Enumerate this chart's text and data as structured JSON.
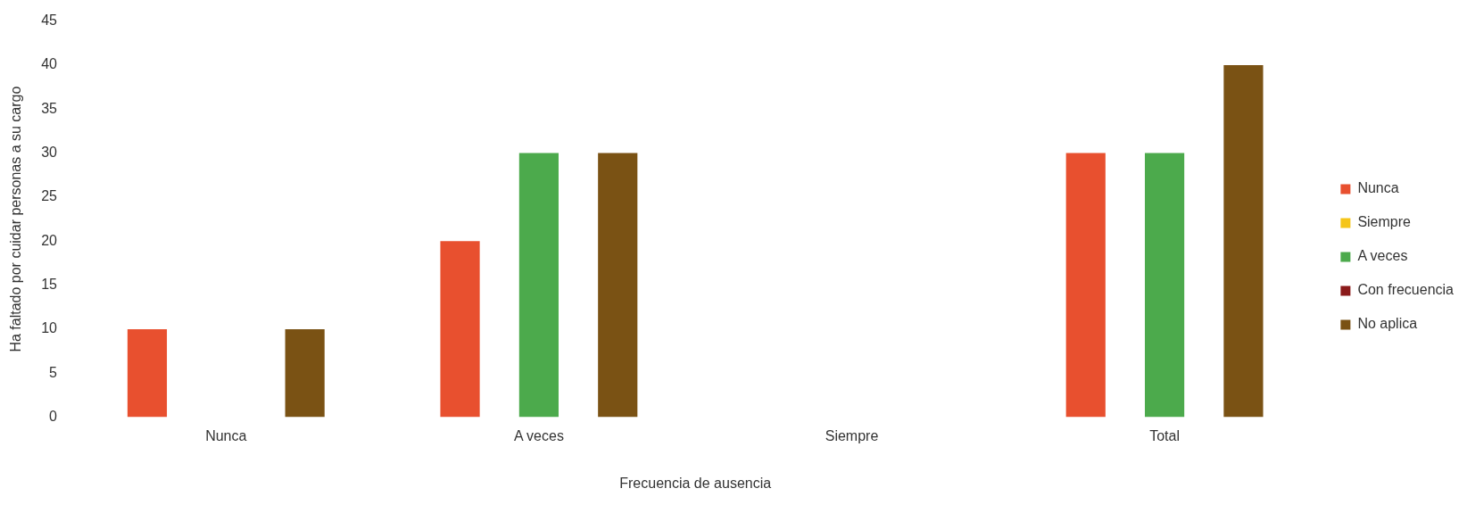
{
  "chart_data": {
    "type": "bar",
    "xlabel": "Frecuencia de ausencia",
    "ylabel": "Ha faltado por cuidar personas a su cargo",
    "categories": [
      "Nunca",
      "A veces",
      "Siempre",
      "Total"
    ],
    "series": [
      {
        "name": "Nunca",
        "color": "#e8502f",
        "values": [
          10,
          20,
          0,
          30
        ]
      },
      {
        "name": "Siempre",
        "color": "#f5c518",
        "values": [
          0,
          0,
          0,
          0
        ]
      },
      {
        "name": "A veces",
        "color": "#4caa4c",
        "values": [
          0,
          30,
          0,
          30
        ]
      },
      {
        "name": "Con frecuencia",
        "color": "#8b1a1a",
        "values": [
          0,
          0,
          0,
          0
        ]
      },
      {
        "name": "No aplica",
        "color": "#7a5214",
        "values": [
          10,
          30,
          0,
          40
        ]
      }
    ],
    "ylim": [
      0,
      45
    ],
    "yticks": [
      0,
      5,
      10,
      15,
      20,
      25,
      30,
      35,
      40,
      45
    ],
    "grid": false,
    "legend": "right"
  }
}
